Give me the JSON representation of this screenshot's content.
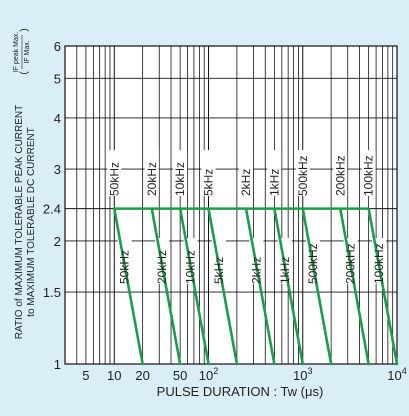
{
  "chart_data": {
    "type": "line",
    "xlabel": "PULSE DURATION : Tw (μs)",
    "ylabel_line1": "RATIO of MAXIMUM TOLERABLE PEAK CURRENT",
    "ylabel_line2": "to MAXIMUM TOLERABLE DC CURRENT",
    "ylabel_fraction_num": "IF peak Max.",
    "ylabel_fraction_den": "IF Max.",
    "x_scale": "log",
    "y_scale": "log",
    "xlim": [
      3,
      10000
    ],
    "ylim": [
      1,
      6
    ],
    "x_ticks": [
      {
        "value": 5,
        "label": "5"
      },
      {
        "value": 10,
        "label": "10"
      },
      {
        "value": 20,
        "label": "20"
      },
      {
        "value": 50,
        "label": "50"
      },
      {
        "value": 100,
        "label": "10",
        "sup": "2"
      },
      {
        "value": 1000,
        "label": "10",
        "sup": "3"
      },
      {
        "value": 10000,
        "label": "10",
        "sup": "4"
      }
    ],
    "y_ticks": [
      {
        "value": 1,
        "label": "1"
      },
      {
        "value": 1.5,
        "label": "1.5"
      },
      {
        "value": 2,
        "label": "2"
      },
      {
        "value": 2.4,
        "label": "2.4"
      },
      {
        "value": 3,
        "label": "3"
      },
      {
        "value": 4,
        "label": "4"
      },
      {
        "value": 5,
        "label": "5"
      },
      {
        "value": 6,
        "label": "6"
      }
    ],
    "plateau": {
      "y": 2.4,
      "x_start": 10,
      "x_end": 5000
    },
    "frequencies": [
      {
        "label": "50kHz",
        "x_top": 10,
        "x_bottom": 20
      },
      {
        "label": "20kHz",
        "x_top": 25,
        "x_bottom": 50
      },
      {
        "label": "10kHz",
        "x_top": 50,
        "x_bottom": 100
      },
      {
        "label": "5kHz",
        "x_top": 100,
        "x_bottom": 200
      },
      {
        "label": "2kHz",
        "x_top": 250,
        "x_bottom": 500
      },
      {
        "label": "1kHz",
        "x_top": 500,
        "x_bottom": 1000
      },
      {
        "label": "500kHz",
        "x_top": 1000,
        "x_bottom": 2000
      },
      {
        "label": "200kHz",
        "x_top": 2500,
        "x_bottom": 5000
      },
      {
        "label": "100kHz",
        "x_top": 5000,
        "x_bottom": 10000
      }
    ],
    "line_color": "#1a9e48",
    "grid": true
  }
}
